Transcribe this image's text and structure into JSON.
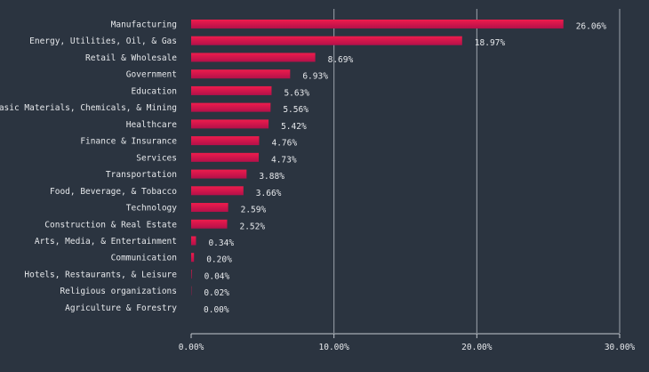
{
  "chart_data": {
    "type": "bar",
    "orientation": "horizontal",
    "categories": [
      "Manufacturing",
      "Energy, Utilities, Oil, & Gas",
      "Retail & Wholesale",
      "Government",
      "Education",
      "Basic Materials, Chemicals, & Mining",
      "Healthcare",
      "Finance & Insurance",
      "Services",
      "Transportation",
      "Food, Beverage, & Tobacco",
      "Technology",
      "Construction & Real Estate",
      "Arts, Media, & Entertainment",
      "Communication",
      "Hotels, Restaurants, & Leisure",
      "Religious organizations",
      "Agriculture & Forestry"
    ],
    "values": [
      26.06,
      18.97,
      8.69,
      6.93,
      5.63,
      5.56,
      5.42,
      4.76,
      4.73,
      3.88,
      3.66,
      2.59,
      2.52,
      0.34,
      0.2,
      0.04,
      0.02,
      0.0
    ],
    "data_labels": [
      "26.06%",
      "18.97%",
      "8.69%",
      "6.93%",
      "5.63%",
      "5.56%",
      "5.42%",
      "4.76%",
      "4.73%",
      "3.88%",
      "3.66%",
      "2.59%",
      "2.52%",
      "0.34%",
      "0.20%",
      "0.04%",
      "0.02%",
      "0.00%"
    ],
    "xlim": [
      0,
      30
    ],
    "xticks": [
      0,
      10,
      20,
      30
    ],
    "xtick_labels": [
      "0.00%",
      "10.00%",
      "20.00%",
      "30.00%"
    ],
    "title": "",
    "xlabel": "",
    "ylabel": "",
    "grid": "vertical",
    "colors": {
      "background": "#2b3440",
      "bar_start": "#b4104a",
      "bar_end": "#ee1c4c",
      "text": "#e6e8eb",
      "grid": "#c5cad1"
    }
  }
}
